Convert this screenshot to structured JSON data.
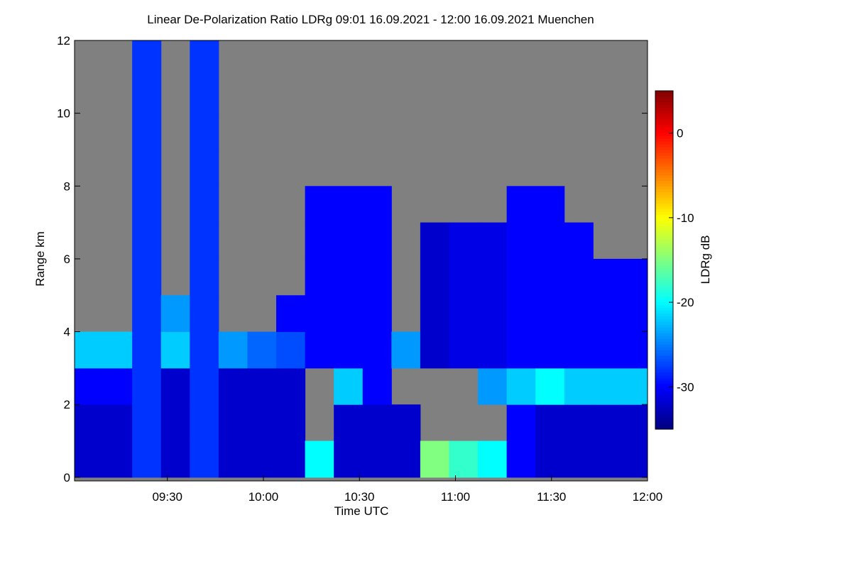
{
  "chart_data": {
    "type": "heatmap",
    "title": "Linear De-Polarization Ratio LDRg   09:01 16.09.2021 - 12:00 16.09.2021 Muenchen",
    "xlabel": "Time UTC",
    "ylabel": "Range km",
    "colorbar_label": "LDRg dB",
    "xbins": [
      541,
      550,
      559,
      568,
      577,
      586,
      595,
      604,
      613,
      622,
      631,
      640,
      649,
      658,
      667,
      676,
      685,
      694,
      703,
      712,
      720
    ],
    "ybins": [
      0,
      1,
      2,
      3,
      4,
      5,
      6,
      7,
      8,
      9,
      10,
      11,
      12
    ],
    "z": [
      [
        -32,
        -32,
        -30,
        -22,
        null,
        null,
        null,
        null,
        null,
        null,
        null,
        null
      ],
      [
        -32,
        -32,
        -30,
        -22,
        null,
        null,
        null,
        null,
        null,
        null,
        null,
        null
      ],
      [
        -28,
        -28,
        -28,
        -28,
        -28,
        -28,
        -28,
        -28,
        -28,
        -28,
        -28,
        -28
      ],
      [
        -32,
        -32,
        -32,
        -22,
        -24,
        null,
        null,
        null,
        null,
        null,
        null,
        null
      ],
      [
        -28,
        -28,
        -28,
        -28,
        -28,
        -28,
        -28,
        -28,
        -28,
        -28,
        -28,
        -28
      ],
      [
        -32,
        -32,
        -32,
        -24,
        null,
        null,
        null,
        null,
        null,
        null,
        null,
        null
      ],
      [
        -32,
        -32,
        -32,
        -26,
        null,
        null,
        null,
        null,
        null,
        null,
        null,
        null
      ],
      [
        -32,
        -32,
        -32,
        -27,
        -30,
        null,
        null,
        null,
        null,
        null,
        null,
        null
      ],
      [
        -20,
        null,
        null,
        -30,
        -30,
        -30,
        -30,
        -30,
        null,
        null,
        null,
        null
      ],
      [
        -32,
        -32,
        -22,
        -30,
        -30,
        -30,
        -30,
        -30,
        null,
        null,
        null,
        null
      ],
      [
        -32,
        -32,
        -30,
        -30,
        -30,
        -30,
        -30,
        -30,
        null,
        null,
        null,
        null
      ],
      [
        -32,
        -32,
        null,
        -24,
        null,
        null,
        null,
        null,
        null,
        null,
        null,
        null
      ],
      [
        -15,
        null,
        null,
        -32,
        -32,
        -32,
        -32,
        null,
        null,
        null,
        null,
        null
      ],
      [
        -18,
        null,
        null,
        -31,
        -31,
        -31,
        -31,
        null,
        null,
        null,
        null,
        null
      ],
      [
        -20,
        null,
        -24,
        -31,
        -31,
        -31,
        -31,
        null,
        null,
        null,
        null,
        null
      ],
      [
        -30,
        -30,
        -22,
        -30,
        -30,
        -30,
        -30,
        -30,
        null,
        null,
        null,
        null
      ],
      [
        -32,
        -32,
        -20,
        -30,
        -30,
        -30,
        -30,
        -30,
        null,
        null,
        null,
        null
      ],
      [
        -32,
        -32,
        -22,
        -30,
        -30,
        -30,
        -30,
        null,
        null,
        null,
        null,
        null
      ],
      [
        -32,
        -32,
        -22,
        -30,
        -30,
        -30,
        null,
        null,
        null,
        null,
        null,
        null
      ],
      [
        -32,
        -32,
        -22,
        -30,
        -30,
        -30,
        null,
        null,
        null,
        null,
        null,
        null
      ]
    ],
    "xlim": [
      541,
      720
    ],
    "xticks": [
      {
        "value": 570,
        "label": "09:30"
      },
      {
        "value": 600,
        "label": "10:00"
      },
      {
        "value": 630,
        "label": "10:30"
      },
      {
        "value": 660,
        "label": "11:00"
      },
      {
        "value": 690,
        "label": "11:30"
      },
      {
        "value": 720,
        "label": "12:00"
      }
    ],
    "ylim": [
      -0.1,
      12
    ],
    "yticks": [
      0,
      2,
      4,
      6,
      8,
      10,
      12
    ],
    "clim": [
      -35,
      5
    ],
    "cticks": [
      0,
      -10,
      -20,
      -30
    ],
    "colormap": "jet",
    "missing_color": "#808080"
  }
}
